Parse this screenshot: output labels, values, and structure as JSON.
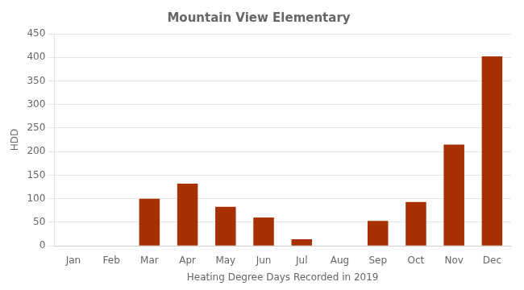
{
  "chart_data": {
    "type": "bar",
    "title": "Mountain View Elementary",
    "xlabel": "Heating Degree Days Recorded in 2019",
    "ylabel": "HDD",
    "categories": [
      "Jan",
      "Feb",
      "Mar",
      "Apr",
      "May",
      "Jun",
      "Jul",
      "Aug",
      "Sep",
      "Oct",
      "Nov",
      "Dec"
    ],
    "values": [
      0,
      0,
      100,
      132,
      83,
      60,
      14,
      0,
      53,
      93,
      215,
      402
    ],
    "color": "#A63000",
    "ylim": [
      0,
      450
    ],
    "yticks": [
      0,
      50,
      100,
      150,
      200,
      250,
      300,
      350,
      400,
      450
    ],
    "grid": true
  }
}
